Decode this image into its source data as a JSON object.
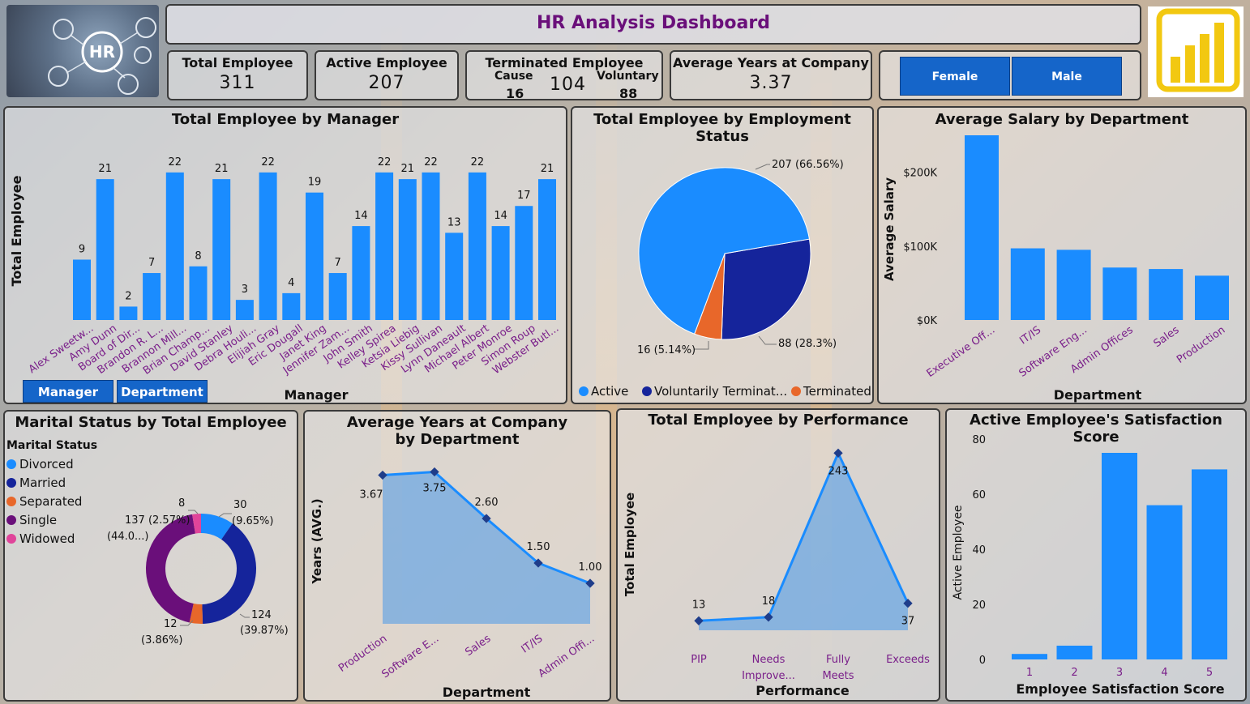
{
  "header": {
    "title": "HR Analysis Dashboard",
    "hr_logo_text": "HR"
  },
  "kpis": {
    "total_employee": {
      "label": "Total Employee",
      "value": "311"
    },
    "active_employee": {
      "label": "Active Employee",
      "value": "207"
    },
    "terminated": {
      "label": "Terminated Employee",
      "value": "104",
      "cause_label": "Cause",
      "cause_value": "16",
      "voluntary_label": "Voluntary",
      "voluntary_value": "88"
    },
    "avg_years": {
      "label": "Average Years at Company",
      "value": "3.37"
    }
  },
  "gender_buttons": [
    "Female",
    "Male"
  ],
  "manager_chart_buttons": [
    "Manager",
    "Department"
  ],
  "colors": {
    "bar": "#1a8cff",
    "navy": "#15249b",
    "orange": "#e8672a",
    "purple": "#6a0f7a",
    "pink": "#e0449a",
    "title_purple": "#6a0f7a",
    "axis_label_purple": "#7a1f8a",
    "pbi_yellow": "#f2c811"
  },
  "chart_data": [
    {
      "id": "by_manager",
      "type": "bar",
      "title": "Total Employee by Manager",
      "xlabel": "Manager",
      "ylabel": "Total Employee",
      "categories": [
        "Alex Sweetw...",
        "Amy Dunn",
        "Board of Dir...",
        "Brandon R. L...",
        "Brannon Mill...",
        "Brian Champ...",
        "David Stanley",
        "Debra Houli...",
        "Elijiah Gray",
        "Eric Dougall",
        "Janet King",
        "Jennifer Zam...",
        "John Smith",
        "Kelley Spirea",
        "Ketsia Liebig",
        "Kissy Sullivan",
        "Lynn Daneault",
        "Michael Albert",
        "Peter Monroe",
        "Simon Roup",
        "Webster Butl..."
      ],
      "values": [
        9,
        21,
        2,
        7,
        22,
        8,
        21,
        3,
        22,
        4,
        19,
        7,
        14,
        22,
        21,
        22,
        13,
        22,
        14,
        17,
        21
      ],
      "ylim": [
        0,
        25
      ]
    },
    {
      "id": "by_status",
      "type": "pie",
      "title": "Total Employee by Employment Status",
      "labels": [
        "Active",
        "Voluntarily Terminat...",
        "Terminated f..."
      ],
      "values": [
        207,
        88,
        16
      ],
      "data_labels": [
        "207 (66.56%)",
        "88 (28.3%)",
        "16 (5.14%)"
      ]
    },
    {
      "id": "salary_dept",
      "type": "bar",
      "title": "Average Salary by Department",
      "xlabel": "Department",
      "ylabel": "Average Salary",
      "categories": [
        "Executive Off...",
        "IT/IS",
        "Software Eng...",
        "Admin Offices",
        "Sales",
        "Production"
      ],
      "values": [
        250000,
        97000,
        95000,
        71000,
        69000,
        60000
      ],
      "yticks": [
        "$0K",
        "$100K",
        "$200K"
      ],
      "ylim": [
        0,
        250000
      ]
    },
    {
      "id": "marital",
      "type": "pie",
      "title": "Marital Status by Total Employee",
      "legend_title": "Marital Status",
      "labels": [
        "Divorced",
        "Married",
        "Separated",
        "Single",
        "Widowed"
      ],
      "values": [
        30,
        124,
        12,
        137,
        8
      ],
      "data_labels": [
        "30 (9.65%)",
        "124 (39.87%)",
        "12 (3.86%)",
        "137 (44.0...)",
        "8 (2.57%)"
      ]
    },
    {
      "id": "years_dept",
      "type": "area",
      "title": "Average Years at Company by Department",
      "xlabel": "Department",
      "ylabel": "Years (AVG.)",
      "categories": [
        "Production",
        "Software E...",
        "Sales",
        "IT/IS",
        "Admin Offi..."
      ],
      "values": [
        3.67,
        3.75,
        2.6,
        1.5,
        1.0
      ],
      "data_labels": [
        "3.67",
        "3.75",
        "2.60",
        "1.50",
        "1.00"
      ]
    },
    {
      "id": "performance",
      "type": "area",
      "title": "Total Employee by Performance",
      "xlabel": "Performance",
      "ylabel": "Total Employee",
      "categories": [
        "PIP",
        "Needs Improve...",
        "Fully Meets",
        "Exceeds"
      ],
      "values": [
        13,
        18,
        243,
        37
      ]
    },
    {
      "id": "satisfaction",
      "type": "bar",
      "title": "Active Employee's Satisfaction Score",
      "xlabel": "Employee Satisfaction Score",
      "ylabel": "Active Employee",
      "categories": [
        "1",
        "2",
        "3",
        "4",
        "5"
      ],
      "values": [
        2,
        5,
        75,
        56,
        69
      ],
      "yticks": [
        0,
        20,
        40,
        60,
        80
      ],
      "ylim": [
        0,
        80
      ]
    }
  ]
}
